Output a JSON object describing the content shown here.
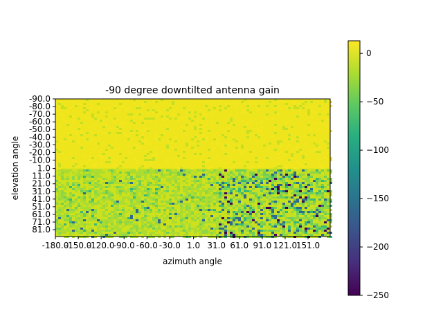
{
  "chart_data": {
    "type": "heatmap",
    "title": "-90 degree downtilted antenna gain",
    "xlabel": "azimuth angle",
    "ylabel": "elevation angle",
    "x_ticks": [
      "-180.0",
      "-150.0",
      "-120.0",
      "-90.0",
      "-60.0",
      "-30.0",
      "1.0",
      "31.0",
      "61.0",
      "91.0",
      "121.0",
      "151.0"
    ],
    "y_ticks": [
      "-90.0",
      "-80.0",
      "-70.0",
      "-60.0",
      "-50.0",
      "-40.0",
      "-30.0",
      "-20.0",
      "-10.0",
      "1.0",
      "11.0",
      "21.0",
      "31.0",
      "41.0",
      "51.0",
      "61.0",
      "71.0",
      "81.0"
    ],
    "xlim": [
      -180,
      180
    ],
    "ylim": [
      -90,
      90
    ],
    "colorbar": {
      "colormap": "viridis",
      "range": [
        -250,
        13
      ],
      "ticks": [
        "0",
        "−50",
        "−100",
        "−150",
        "−200",
        "−250"
      ]
    },
    "colors": [
      "#440154",
      "#3b528b",
      "#21918c",
      "#5ec962",
      "#fde725"
    ]
  }
}
